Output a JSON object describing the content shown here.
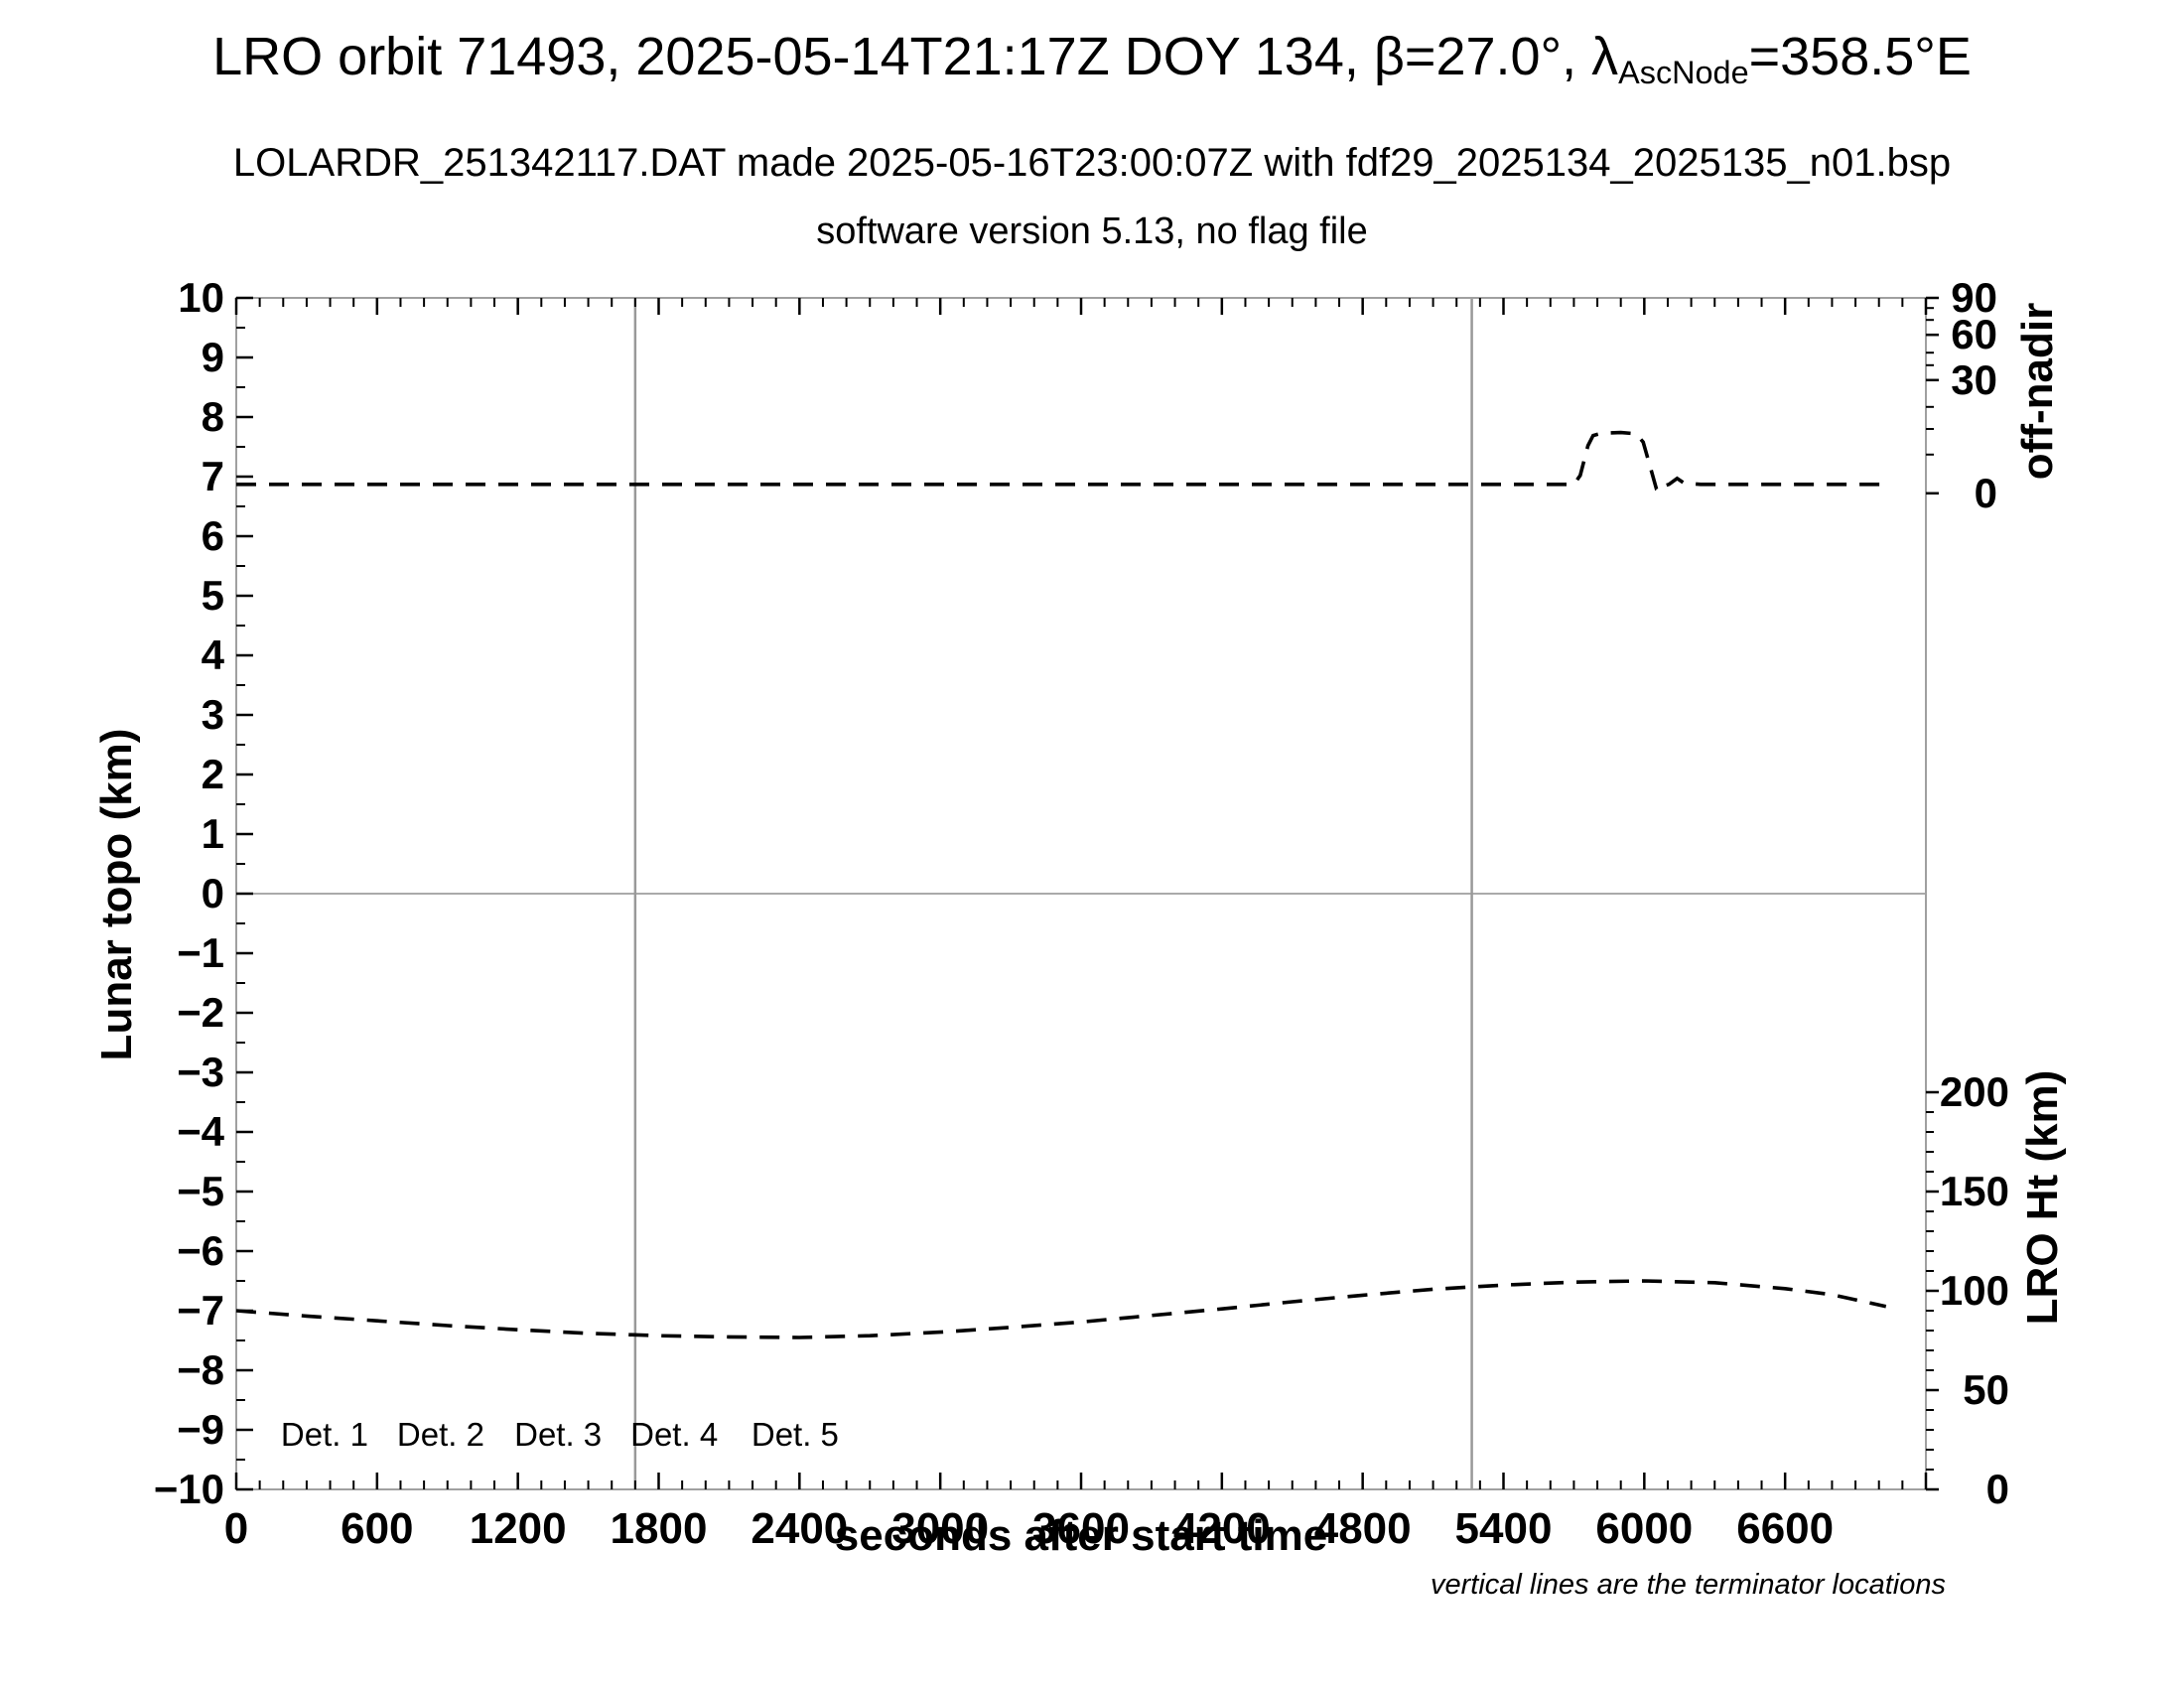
{
  "titles": {
    "line1_pre": "LRO orbit 71493, 2025-05-14T21:17Z DOY 134, β=27.0°, λ",
    "line1_sub": "AscNode",
    "line1_post": "=358.5°E",
    "line2": "LOLARDR_251342117.DAT made 2025-05-16T23:00:07Z with fdf29_2025134_2025135_n01.bsp",
    "line3": "software version 5.13, no flag file"
  },
  "footnote": "vertical lines are the terminator locations",
  "colors": {
    "frame": "#a0a0a0",
    "gridline": "#aaaaaa",
    "terminator_line": "#999999",
    "tick": "#000000",
    "curve": "#000000"
  },
  "chart_data": {
    "type": "line",
    "x_axis": {
      "label": "seconds after start time",
      "range": [
        0,
        7200
      ],
      "major_tick_interval": 600,
      "minor_tick_interval": 100,
      "tick_labels": [
        0,
        600,
        1200,
        1800,
        2400,
        3000,
        3600,
        4200,
        4800,
        5400,
        6000,
        6600
      ]
    },
    "y_axis_left": {
      "label": "Lunar topo (km)",
      "range": [
        -10,
        10
      ],
      "major_tick_interval": 1,
      "minor_tick_interval": 0.5
    },
    "y_axis_right_top": {
      "label": "off-nadir",
      "major_ticks": [
        {
          "label": "90",
          "topo_y": 10.0
        },
        {
          "label": "60",
          "topo_y": 9.38
        },
        {
          "label": "30",
          "topo_y": 8.62
        },
        {
          "label": "0",
          "topo_y": 6.72
        }
      ],
      "minor_ticks_topo_y": [
        9.83,
        9.63,
        9.08,
        8.87,
        8.17,
        7.8,
        7.37
      ]
    },
    "y_axis_right_bottom": {
      "label": "LRO Ht (km)",
      "km_min": 0,
      "km_max": 200,
      "major_step_km": 50,
      "minor_step_km": 10,
      "tick_labels": [
        "200",
        "150",
        "100",
        "50",
        "0"
      ]
    },
    "terminator_lines_x": [
      1700,
      5265
    ],
    "zero_line_y": 0,
    "series": [
      {
        "name": "off-nadir angle trace (top dashed line)",
        "color": "#000000",
        "style": "dashed",
        "points": [
          [
            0,
            6.87
          ],
          [
            1000,
            6.87
          ],
          [
            2000,
            6.87
          ],
          [
            3000,
            6.87
          ],
          [
            4000,
            6.87
          ],
          [
            5000,
            6.87
          ],
          [
            5700,
            6.87
          ],
          [
            5727,
            7.02
          ],
          [
            5760,
            7.52
          ],
          [
            5782,
            7.69
          ],
          [
            5820,
            7.73
          ],
          [
            5900,
            7.74
          ],
          [
            5965,
            7.72
          ],
          [
            5995,
            7.58
          ],
          [
            6030,
            7.1
          ],
          [
            6052,
            6.79
          ],
          [
            6065,
            6.76
          ],
          [
            6080,
            6.84
          ],
          [
            6105,
            6.87
          ],
          [
            6140,
            6.97
          ],
          [
            6170,
            6.89
          ],
          [
            6240,
            6.87
          ],
          [
            7030,
            6.87
          ]
        ]
      },
      {
        "name": "LRO height trace (bottom dashed line)",
        "color": "#000000",
        "style": "dashed",
        "points": [
          [
            0,
            -7.0
          ],
          [
            300,
            -7.09
          ],
          [
            600,
            -7.17
          ],
          [
            900,
            -7.25
          ],
          [
            1200,
            -7.32
          ],
          [
            1500,
            -7.38
          ],
          [
            1800,
            -7.42
          ],
          [
            2100,
            -7.44
          ],
          [
            2400,
            -7.45
          ],
          [
            2700,
            -7.42
          ],
          [
            3000,
            -7.36
          ],
          [
            3300,
            -7.28
          ],
          [
            3600,
            -7.19
          ],
          [
            3900,
            -7.08
          ],
          [
            4200,
            -6.97
          ],
          [
            4500,
            -6.85
          ],
          [
            4800,
            -6.74
          ],
          [
            5100,
            -6.64
          ],
          [
            5400,
            -6.57
          ],
          [
            5700,
            -6.52
          ],
          [
            6000,
            -6.5
          ],
          [
            6300,
            -6.53
          ],
          [
            6600,
            -6.63
          ],
          [
            6800,
            -6.73
          ],
          [
            6950,
            -6.86
          ],
          [
            7030,
            -6.93
          ]
        ]
      }
    ],
    "legend": {
      "items": [
        {
          "label": "Det. 1",
          "color": "#000000"
        },
        {
          "label": "Det. 2",
          "color": "#0000ff"
        },
        {
          "label": "Det. 3",
          "color": "#00dd00"
        },
        {
          "label": "Det. 4",
          "color": "#ffa500"
        },
        {
          "label": "Det. 5",
          "color": "#ff0000"
        }
      ],
      "x_positions_t": [
        190,
        685,
        1185,
        1680,
        2195
      ],
      "y_topo": -9.07,
      "position": "inside-bottom-left"
    }
  }
}
